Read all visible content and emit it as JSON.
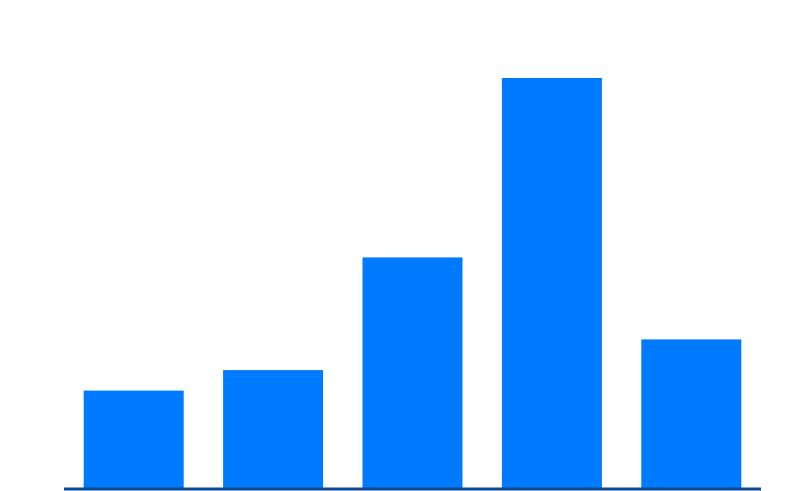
{
  "chart_data": {
    "type": "bar",
    "categories": [
      "",
      "",
      "",
      "",
      ""
    ],
    "values": [
      19,
      23,
      45,
      80,
      29
    ],
    "ylim": [
      0,
      80
    ],
    "title": "",
    "xlabel": "",
    "ylabel": "",
    "grid": false,
    "legend": "none"
  },
  "colors": {
    "bar": "#007bff",
    "axis": "#0c4a92",
    "background": "#ffffff"
  }
}
